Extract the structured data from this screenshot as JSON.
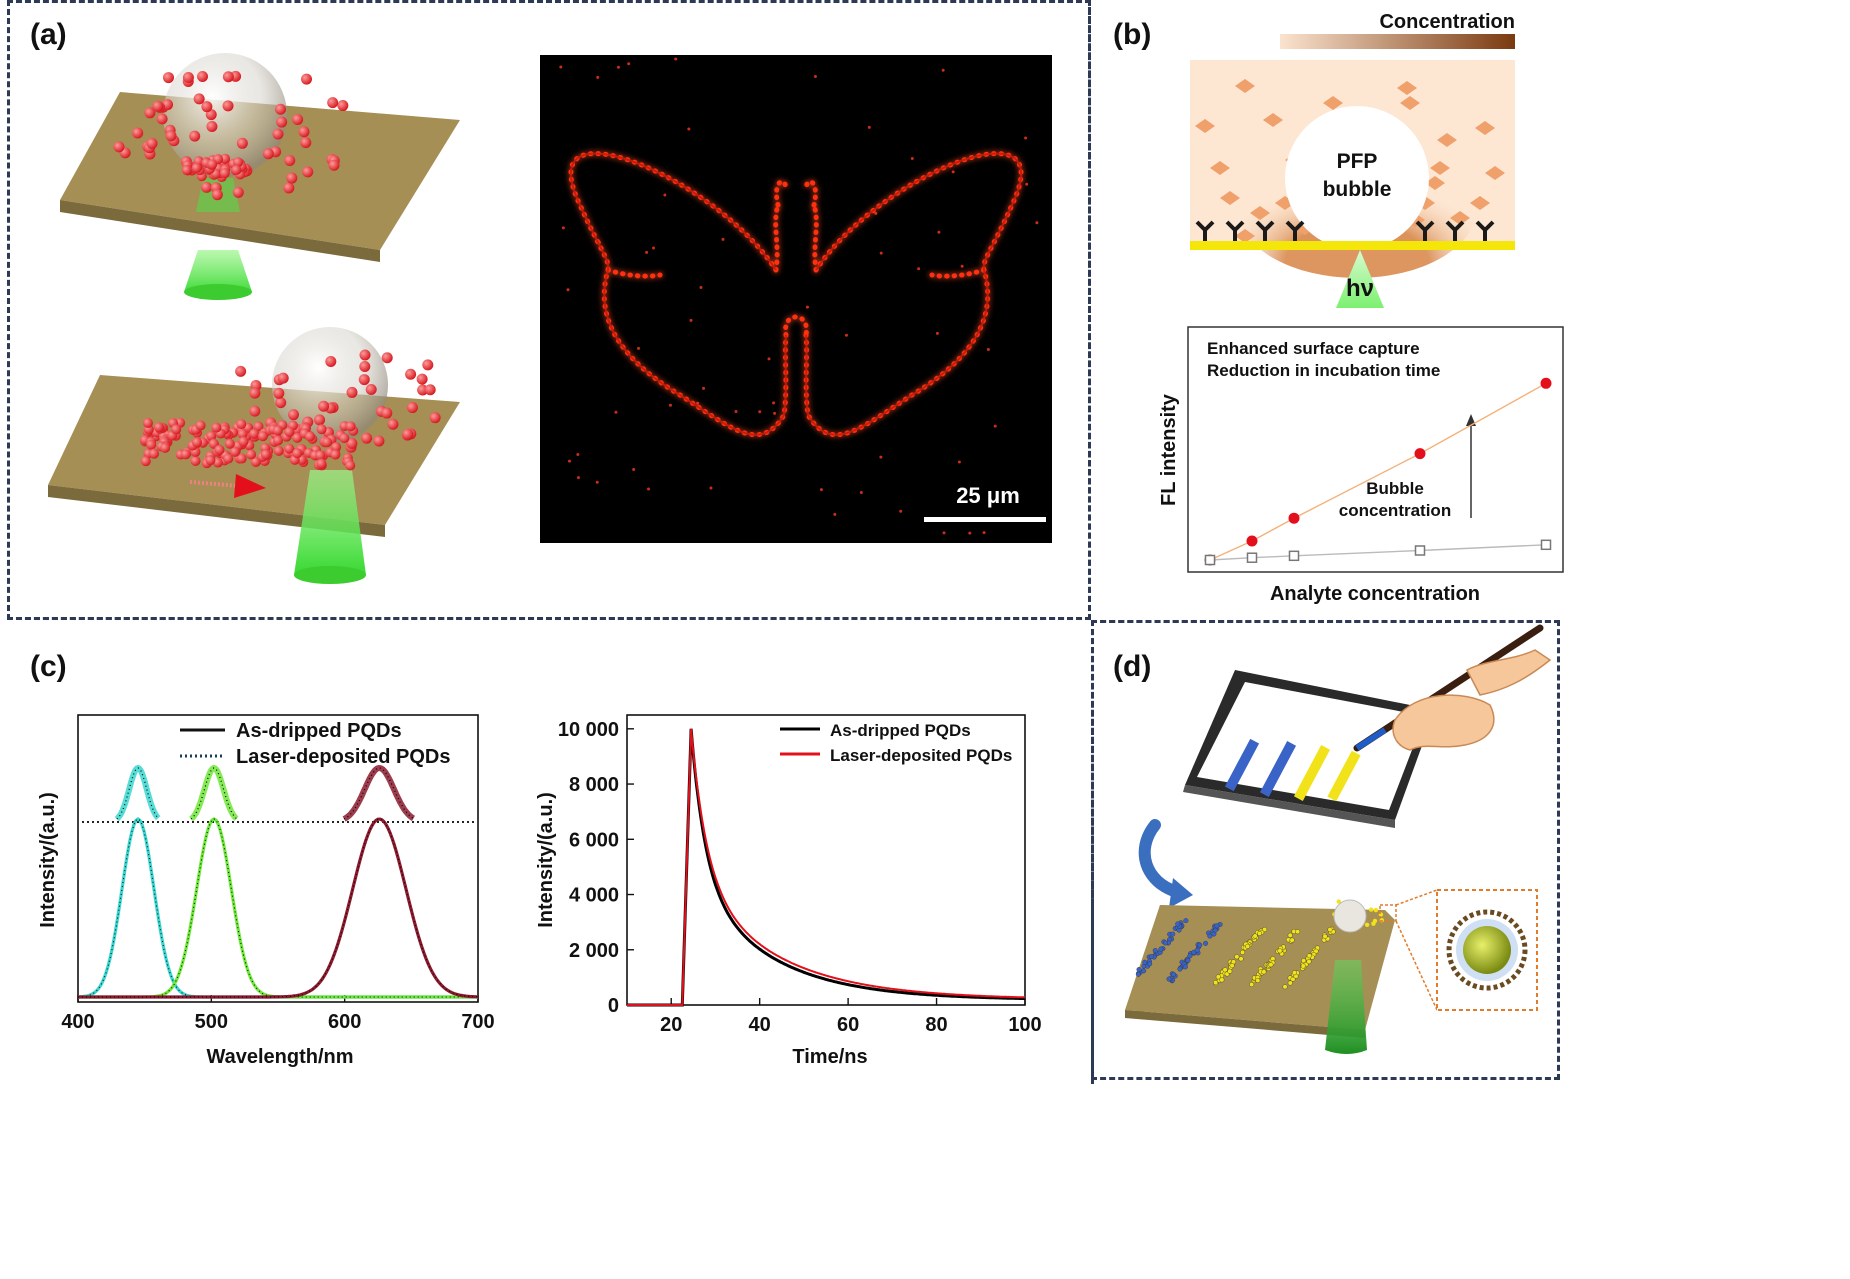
{
  "panels": {
    "a": {
      "label": "(a)",
      "scale_bar": "25 μm"
    },
    "b": {
      "label": "(b)",
      "concentration_label": "Concentration",
      "bubble_text": [
        "PFP",
        "bubble"
      ],
      "light_label": "hν",
      "note_line1": "Enhanced surface capture",
      "note_line2": "Reduction in incubation time",
      "bubble_conc_line1": "Bubble",
      "bubble_conc_line2": "concentration",
      "xlabel": "Analyte concentration",
      "ylabel": "FL intensity"
    },
    "c": {
      "label": "(c)"
    },
    "d": {
      "label": "(d)"
    }
  },
  "colors": {
    "frame": "#2e3a55",
    "cyan": "#39d6cf",
    "green": "#6ee83a",
    "dark_red": "#8b1a2e",
    "red": "#e3101b",
    "gold_plate": "#a58f55"
  },
  "chart_data": [
    {
      "id": "inset-b",
      "type": "scatter",
      "title": "",
      "xlabel": "Analyte concentration",
      "ylabel": "FL intensity",
      "series": [
        {
          "marker": "filled-circle",
          "color": "#e3101b",
          "x": [
            0,
            1,
            2,
            5,
            8
          ],
          "y": [
            0.0,
            0.1,
            0.22,
            0.56,
            0.93
          ]
        },
        {
          "marker": "open-square",
          "color": "#777777",
          "x": [
            0,
            1,
            2,
            5,
            8
          ],
          "y": [
            0.0,
            0.012,
            0.022,
            0.05,
            0.08
          ]
        }
      ],
      "annotations": [
        "Enhanced surface capture",
        "Reduction in incubation time",
        "Bubble concentration"
      ]
    },
    {
      "id": "pl-spectra",
      "type": "line",
      "xlabel": "Wavelength/nm",
      "ylabel": "Intensity/(a.u.)",
      "xlim": [
        400,
        700
      ],
      "xticks": [
        "400",
        "500",
        "600",
        "700"
      ],
      "legend": [
        "As-dripped PQDs",
        "Laser-deposited PQDs"
      ],
      "peaks": [
        {
          "center": 445,
          "width": 12,
          "color": "#39d6cf"
        },
        {
          "center": 502,
          "width": 13,
          "color": "#6ee83a"
        },
        {
          "center": 626,
          "width": 20,
          "color": "#8b1a2e"
        }
      ]
    },
    {
      "id": "pl-decay",
      "type": "line",
      "xlabel": "Time/ns",
      "ylabel": "Intensity/(a.u.)",
      "xlim": [
        10,
        100
      ],
      "ylim": [
        0,
        10500
      ],
      "xticks": [
        "20",
        "40",
        "60",
        "80",
        "100"
      ],
      "yticks": [
        "0",
        "2 000",
        "4 000",
        "6 000",
        "8 000",
        "10 000"
      ],
      "series": [
        {
          "name": "As-dripped PQDs",
          "color": "#000000",
          "peak_time": 24.5,
          "peak": 10000,
          "onset": 22.5,
          "tail": 180
        },
        {
          "name": "Laser-deposited PQDs",
          "color": "#e3101b",
          "peak_time": 24.5,
          "peak": 10000,
          "onset": 22.5,
          "tail": 200
        }
      ]
    }
  ]
}
